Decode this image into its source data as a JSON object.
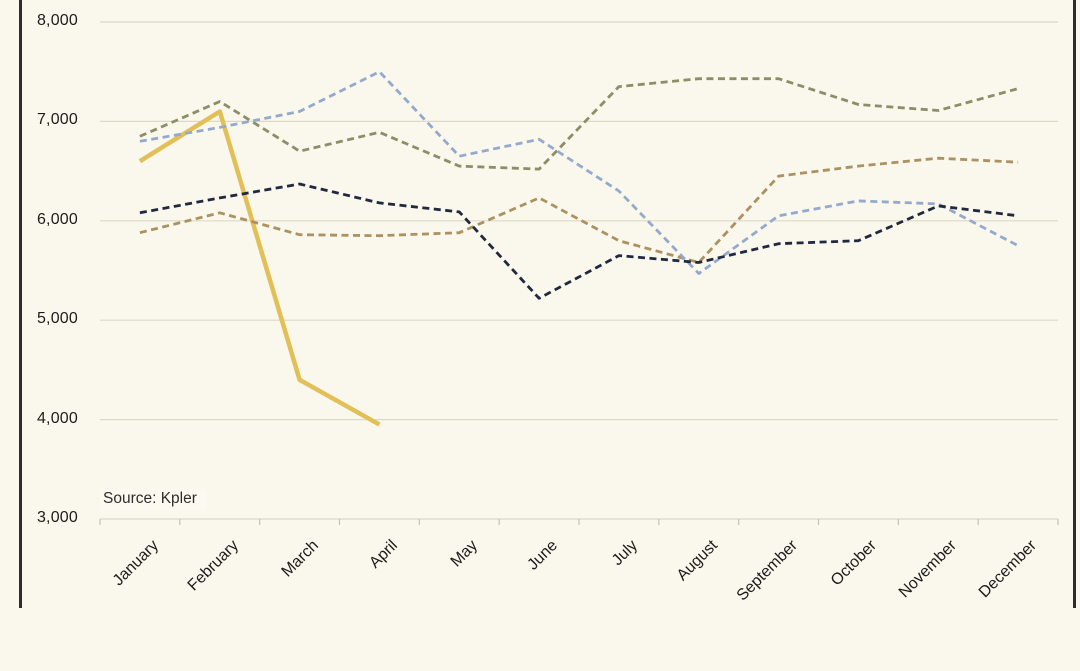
{
  "chart_data": {
    "type": "line",
    "title": "",
    "source": "Source: Kpler",
    "categories": [
      "January",
      "February",
      "March",
      "April",
      "May",
      "June",
      "July",
      "August",
      "September",
      "October",
      "November",
      "December"
    ],
    "series": [
      {
        "name": "series-gold-solid",
        "color": "#e2bf57",
        "style": "solid",
        "width": 4.5,
        "values": [
          6600,
          7100,
          4400,
          3950,
          null,
          null,
          null,
          null,
          null,
          null,
          null,
          null
        ]
      },
      {
        "name": "series-olive-dashed",
        "color": "#8e8d66",
        "style": "dashed",
        "width": 2.8,
        "values": [
          6850,
          7200,
          6700,
          6890,
          6550,
          6520,
          7350,
          7430,
          7430,
          7170,
          7110,
          7330
        ]
      },
      {
        "name": "series-tan-dashed",
        "color": "#ab9260",
        "style": "dashed",
        "width": 2.8,
        "values": [
          5880,
          6080,
          5860,
          5850,
          5880,
          6230,
          5800,
          5580,
          6450,
          6550,
          6630,
          6590
        ]
      },
      {
        "name": "series-steelblue-dashed",
        "color": "#93aace",
        "style": "dashed",
        "width": 2.8,
        "values": [
          6800,
          6940,
          7100,
          7500,
          6650,
          6820,
          6300,
          5470,
          6050,
          6200,
          6170,
          5750
        ]
      },
      {
        "name": "series-navy-dashed",
        "color": "#212940",
        "style": "dashed",
        "width": 2.8,
        "values": [
          6080,
          6230,
          6370,
          6180,
          6090,
          5220,
          5650,
          5580,
          5770,
          5800,
          6150,
          6050
        ]
      }
    ],
    "ylim": [
      3000,
      8000
    ],
    "ytick_interval": 1000,
    "ytick_labels": [
      "3,000",
      "4,000",
      "5,000",
      "6,000",
      "7,000",
      "8,000"
    ],
    "grid": true,
    "legend": "none",
    "xlabel_rotation_deg": 45,
    "colors": {
      "background": "#faf7ec",
      "gridline": "#dcd9c9",
      "tick": "#c6c3b3",
      "frame": "#2d2d2d",
      "axis_text": "#1c1c1c",
      "source_text": "#2e2e2e"
    }
  }
}
